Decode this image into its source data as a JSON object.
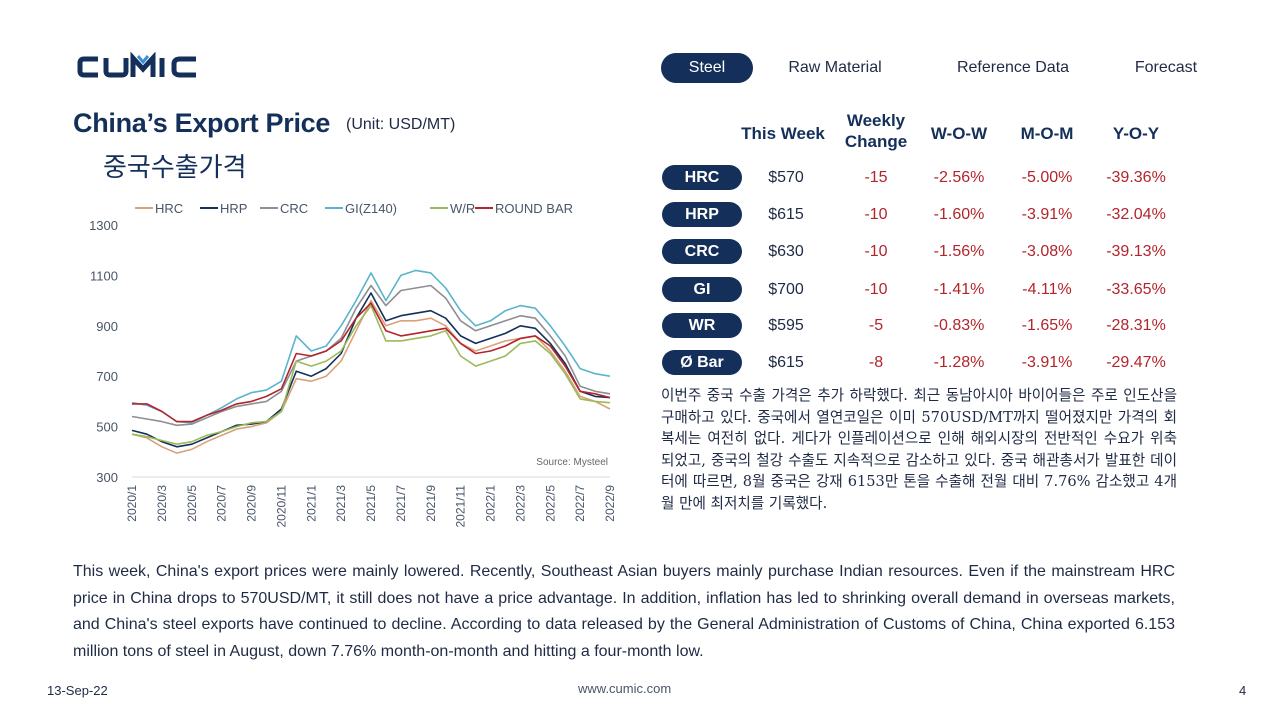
{
  "brand": {
    "logo_text": "CUMIC"
  },
  "nav": {
    "items": [
      "Steel",
      "Raw Material",
      "Reference Data",
      "Forecast"
    ],
    "active": "Steel"
  },
  "header": {
    "title": "China’s Export Price",
    "unit": "(Unit: USD/MT)",
    "subtitle_ko": "중국수출가격"
  },
  "table": {
    "headers": {
      "this_week": "This Week",
      "weekly_change": "Weekly Change",
      "wow": "W-O-W",
      "mom": "M-O-M",
      "yoy": "Y-O-Y"
    },
    "rows": [
      {
        "label": "HRC",
        "price": "$570",
        "change": "-15",
        "wow": "-2.56%",
        "mom": "-5.00%",
        "yoy": "-39.36%"
      },
      {
        "label": "HRP",
        "price": "$615",
        "change": "-10",
        "wow": "-1.60%",
        "mom": "-3.91%",
        "yoy": "-32.04%"
      },
      {
        "label": "CRC",
        "price": "$630",
        "change": "-10",
        "wow": "-1.56%",
        "mom": "-3.08%",
        "yoy": "-39.13%"
      },
      {
        "label": "GI",
        "price": "$700",
        "change": "-10",
        "wow": "-1.41%",
        "mom": "-4.11%",
        "yoy": "-33.65%"
      },
      {
        "label": "WR",
        "price": "$595",
        "change": "-5",
        "wow": "-0.83%",
        "mom": "-1.65%",
        "yoy": "-28.31%"
      },
      {
        "label": "Ø Bar",
        "price": "$615",
        "change": "-8",
        "wow": "-1.28%",
        "mom": "-3.91%",
        "yoy": "-29.47%"
      }
    ]
  },
  "commentary": {
    "ko": "이번주 중국 수출 가격은 추가 하락했다. 최근 동남아시아 바이어들은 주로 인도산을 구매하고 있다. 중국에서 열연코일은 이미 570USD/MT까지 떨어졌지만 가격의 회복세는 여전히 없다. 게다가 인플레이션으로 인해 해외시장의 전반적인 수요가 위축되었고, 중국의 철강 수출도 지속적으로 감소하고 있다. 중국 해관총서가 발표한 데이터에 따르면, 8월 중국은 강재 6153만 톤을 수출해 전월 대비 7.76% 감소했고 4개월 만에 최저치를 기록했다.",
    "en": "This week, China's export prices were mainly lowered. Recently, Southeast Asian buyers mainly purchase Indian resources. Even if the mainstream HRC price in China drops to 570USD/MT, it still does not have a price advantage. In addition, inflation has led to shrinking overall demand in overseas markets, and China's steel exports have continued to decline. According to data released by the General Administration of Customs of China, China exported 6.153 million tons of steel in August, down 7.76% month-on-month and hitting a four-month low."
  },
  "footer": {
    "date": "13-Sep-22",
    "url": "www.cumic.com",
    "page": "4"
  },
  "colors": {
    "navy": "#14305a",
    "negative": "#b3242b"
  },
  "chart_data": {
    "type": "line",
    "source": "Source: Mysteel",
    "ylim": [
      300,
      1300
    ],
    "yticks": [
      300,
      500,
      700,
      900,
      1100,
      1300
    ],
    "x": [
      "2020/1",
      "2020/2",
      "2020/3",
      "2020/4",
      "2020/5",
      "2020/6",
      "2020/7",
      "2020/8",
      "2020/9",
      "2020/10",
      "2020/11",
      "2020/12",
      "2021/1",
      "2021/2",
      "2021/3",
      "2021/4",
      "2021/5",
      "2021/6",
      "2021/7",
      "2021/8",
      "2021/9",
      "2021/10",
      "2021/11",
      "2021/12",
      "2022/1",
      "2022/2",
      "2022/3",
      "2022/4",
      "2022/5",
      "2022/6",
      "2022/7",
      "2022/8",
      "2022/9"
    ],
    "xticks": [
      "2020/1",
      "2020/3",
      "2020/5",
      "2020/7",
      "2020/9",
      "2020/11",
      "2021/1",
      "2021/3",
      "2021/5",
      "2021/7",
      "2021/9",
      "2021/11",
      "2022/1",
      "2022/3",
      "2022/5",
      "2022/7",
      "2022/9"
    ],
    "series": [
      {
        "name": "HRC",
        "color": "#d9a27a",
        "values": [
          470,
          455,
          420,
          395,
          410,
          440,
          465,
          490,
          500,
          515,
          560,
          690,
          680,
          700,
          760,
          880,
          1000,
          900,
          920,
          920,
          930,
          900,
          830,
          800,
          820,
          840,
          850,
          860,
          800,
          720,
          620,
          600,
          570
        ]
      },
      {
        "name": "HRP",
        "color": "#14305a",
        "values": [
          485,
          470,
          440,
          420,
          430,
          455,
          480,
          505,
          510,
          520,
          570,
          720,
          700,
          730,
          790,
          930,
          1030,
          920,
          940,
          950,
          960,
          930,
          860,
          830,
          850,
          870,
          900,
          890,
          830,
          750,
          640,
          620,
          615
        ]
      },
      {
        "name": "CRC",
        "color": "#8e8e93",
        "values": [
          540,
          530,
          520,
          505,
          510,
          535,
          560,
          580,
          590,
          600,
          640,
          760,
          780,
          800,
          850,
          970,
          1060,
          980,
          1040,
          1050,
          1060,
          1010,
          920,
          880,
          900,
          920,
          940,
          930,
          860,
          780,
          660,
          640,
          630
        ]
      },
      {
        "name": "GI(Z140)",
        "color": "#5ab4cf",
        "values": [
          595,
          585,
          560,
          520,
          515,
          545,
          575,
          610,
          635,
          645,
          680,
          860,
          800,
          820,
          900,
          1000,
          1110,
          1000,
          1100,
          1120,
          1110,
          1050,
          960,
          900,
          920,
          960,
          980,
          970,
          900,
          820,
          730,
          710,
          700
        ]
      },
      {
        "name": "W/R",
        "color": "#9bbb59",
        "values": [
          470,
          460,
          445,
          430,
          440,
          465,
          480,
          500,
          515,
          520,
          560,
          760,
          740,
          760,
          800,
          900,
          980,
          840,
          840,
          850,
          860,
          880,
          780,
          740,
          760,
          780,
          830,
          840,
          790,
          710,
          610,
          600,
          595
        ]
      },
      {
        "name": "ROUND BAR",
        "color": "#b3242b",
        "values": [
          590,
          590,
          560,
          520,
          520,
          545,
          565,
          590,
          600,
          620,
          650,
          790,
          780,
          800,
          840,
          930,
          990,
          880,
          860,
          870,
          880,
          890,
          830,
          790,
          800,
          820,
          850,
          860,
          820,
          740,
          640,
          630,
          615
        ]
      }
    ]
  }
}
